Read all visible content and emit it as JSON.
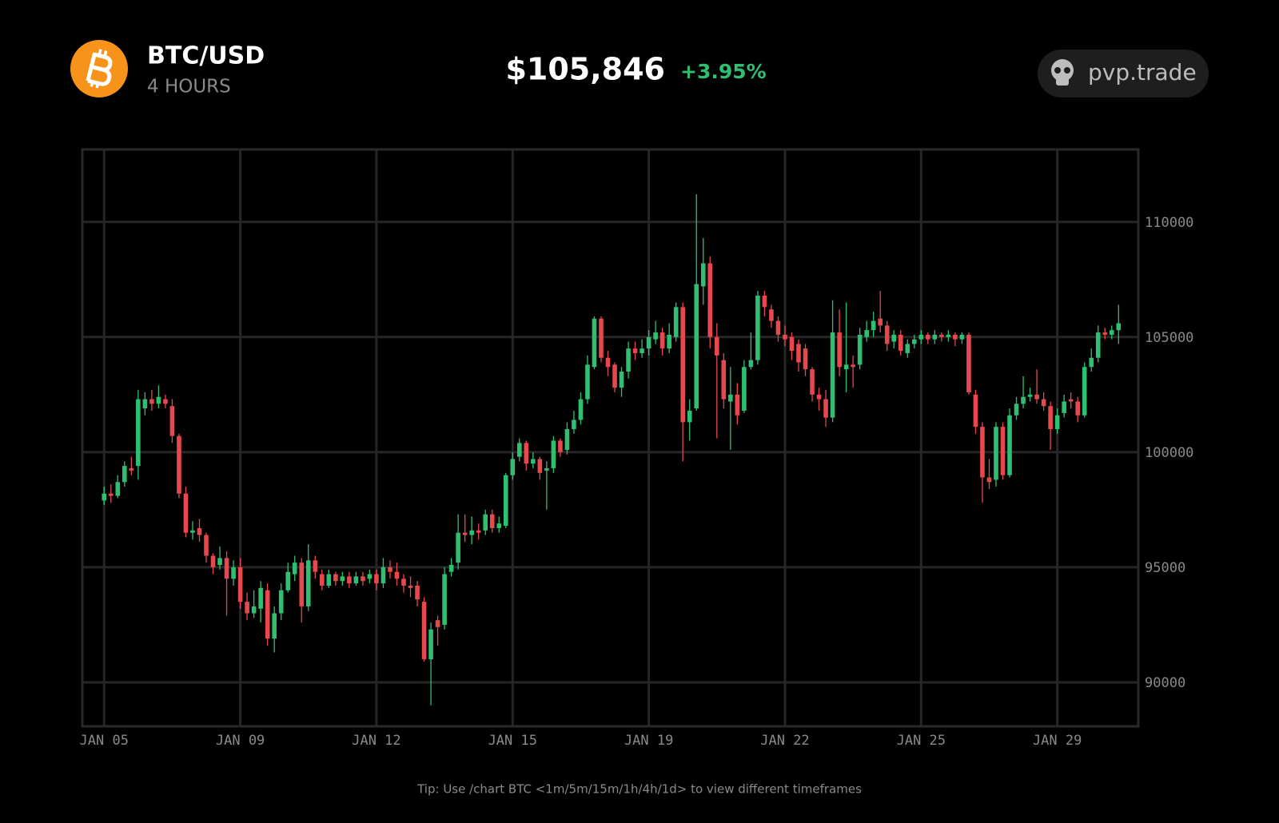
{
  "header": {
    "symbol": "BTC/USD",
    "interval": "4 HOURS",
    "price": "$105,846",
    "change": "+3.95%",
    "brand": "pvp.trade"
  },
  "footer": {
    "tip": "Tip: Use /chart BTC <1m/5m/15m/1h/4h/1d> to view different timeframes"
  },
  "chart_data": {
    "type": "candlestick",
    "categories": [
      "JAN 05",
      null,
      null,
      null,
      null,
      null,
      null,
      null,
      null,
      null,
      null,
      null,
      null,
      null,
      null,
      null,
      null,
      null,
      null,
      null,
      "JAN 09",
      null,
      null,
      null,
      null,
      null,
      null,
      null,
      null,
      null,
      null,
      null,
      null,
      null,
      null,
      null,
      null,
      null,
      null,
      null,
      "JAN 12",
      null,
      null,
      null,
      null,
      null,
      null,
      null,
      null,
      null,
      null,
      null,
      null,
      null,
      null,
      null,
      null,
      null,
      null,
      null,
      "JAN 15",
      null,
      null,
      null,
      null,
      null,
      null,
      null,
      null,
      null,
      null,
      null,
      null,
      null,
      null,
      null,
      null,
      null,
      null,
      null,
      "JAN 19",
      null,
      null,
      null,
      null,
      null,
      null,
      null,
      null,
      null,
      null,
      null,
      null,
      null,
      null,
      null,
      null,
      null,
      null,
      null,
      "JAN 22",
      null,
      null,
      null,
      null,
      null,
      null,
      null,
      null,
      null,
      null,
      null,
      null,
      null,
      null,
      null,
      null,
      null,
      null,
      null,
      "JAN 25",
      null,
      null,
      null,
      null,
      null,
      null,
      null,
      null,
      null,
      null,
      null,
      null,
      null,
      null,
      null,
      null,
      null,
      null,
      null,
      "JAN 29",
      null,
      null,
      null,
      null,
      null,
      null,
      null,
      null,
      null
    ],
    "open": [
      97900,
      98200,
      98100,
      98700,
      99300,
      99400,
      101900,
      102300,
      102100,
      102300,
      102000,
      100700,
      98200,
      96500,
      96700,
      96400,
      95500,
      95100,
      95400,
      94500,
      95000,
      93500,
      93000,
      93200,
      94000,
      91900,
      93000,
      94000,
      94700,
      95200,
      93300,
      95300,
      94700,
      94200,
      94700,
      94400,
      94600,
      94300,
      94600,
      94500,
      94700,
      94300,
      95000,
      94800,
      94500,
      94200,
      94200,
      93500,
      91000,
      92700,
      92500,
      94800,
      95200,
      96500,
      96400,
      96600,
      96600,
      97300,
      96700,
      96800,
      99000,
      99800,
      100400,
      99500,
      99700,
      99200,
      99300,
      100500,
      100100,
      101000,
      101400,
      102300,
      103700,
      105800,
      104100,
      103800,
      102800,
      103500,
      104500,
      104300,
      104500,
      104900,
      105200,
      104500,
      105000,
      106300,
      101300,
      101900,
      107200,
      108200,
      105000,
      104000,
      102200,
      102500,
      101800,
      103700,
      104000,
      106800,
      106200,
      105700,
      105100,
      105000,
      104700,
      104500,
      103600,
      102500,
      102300,
      101500,
      105200,
      103600,
      103800,
      103800,
      105000,
      105300,
      105800,
      105500,
      104800,
      105100,
      104300,
      104700,
      104900,
      105100,
      104900,
      105100,
      105000,
      105100,
      104900,
      105100,
      102500,
      101100,
      98900,
      98800,
      101100,
      99000,
      101600,
      102100,
      102400,
      102500,
      102300,
      102000,
      101000,
      101700,
      102300,
      102200,
      101600,
      103700,
      104100,
      105200,
      105100,
      105300
    ],
    "high": [
      98500,
      98600,
      99000,
      99600,
      99800,
      102700,
      102600,
      102700,
      102900,
      102500,
      102300,
      100800,
      98500,
      97000,
      97100,
      96500,
      95600,
      95900,
      95700,
      95300,
      95400,
      93900,
      94000,
      94400,
      94300,
      93300,
      94300,
      95200,
      95500,
      95400,
      96000,
      95500,
      94900,
      94900,
      94800,
      94800,
      94800,
      94800,
      94800,
      94900,
      94900,
      95400,
      95300,
      95200,
      94700,
      94600,
      94400,
      93700,
      92600,
      92900,
      95000,
      95400,
      97300,
      97300,
      97200,
      96900,
      97500,
      97500,
      97200,
      99100,
      100000,
      100600,
      100500,
      100000,
      99800,
      99600,
      100700,
      100600,
      101300,
      101800,
      102600,
      104200,
      105900,
      105900,
      104400,
      103900,
      103700,
      104800,
      104800,
      104900,
      105300,
      105700,
      105400,
      105600,
      106500,
      106500,
      102300,
      111200,
      109300,
      108500,
      105600,
      104300,
      103700,
      103000,
      104000,
      105200,
      107000,
      107000,
      106400,
      105900,
      105500,
      105200,
      104900,
      104700,
      103700,
      102800,
      102700,
      106600,
      106200,
      106500,
      104200,
      105400,
      105700,
      106100,
      107000,
      105700,
      105300,
      105300,
      104900,
      105100,
      105300,
      105200,
      105300,
      105200,
      105300,
      105200,
      105200,
      105200,
      102700,
      101300,
      99700,
      101300,
      101300,
      101900,
      102400,
      103300,
      102800,
      103600,
      102600,
      102200,
      101900,
      102500,
      102600,
      102400,
      103900,
      104500,
      105500,
      105400,
      105500,
      106400
    ],
    "low": [
      97700,
      97800,
      98000,
      98500,
      99000,
      98800,
      101600,
      101800,
      101900,
      101900,
      100400,
      98000,
      96300,
      96200,
      96100,
      95200,
      94700,
      94900,
      92900,
      94200,
      93200,
      92700,
      92800,
      92600,
      91600,
      91300,
      92700,
      93900,
      94400,
      92600,
      93100,
      94500,
      94000,
      94100,
      94200,
      94200,
      94100,
      94200,
      94200,
      94300,
      94000,
      94100,
      94500,
      94200,
      93900,
      93700,
      93300,
      90900,
      89000,
      91600,
      92300,
      94600,
      94900,
      96100,
      96000,
      96200,
      96400,
      96500,
      96500,
      96700,
      98800,
      99600,
      99200,
      99300,
      98800,
      97500,
      99100,
      99800,
      99900,
      100800,
      101200,
      102100,
      103600,
      103900,
      103300,
      102600,
      102400,
      103200,
      104000,
      104100,
      104200,
      104700,
      104200,
      104300,
      104800,
      99600,
      100500,
      101800,
      106400,
      104500,
      100600,
      101900,
      100100,
      101200,
      101700,
      103600,
      103800,
      105900,
      105400,
      104800,
      104600,
      104000,
      103500,
      103300,
      102200,
      101800,
      101100,
      101300,
      103300,
      102600,
      102800,
      103600,
      104800,
      105000,
      105200,
      104400,
      104500,
      104200,
      104100,
      104500,
      104700,
      104700,
      104700,
      104800,
      104800,
      104600,
      104700,
      102500,
      100800,
      97800,
      98400,
      98500,
      98800,
      98900,
      101400,
      101900,
      102200,
      102100,
      101800,
      100100,
      100800,
      101500,
      101900,
      101300,
      101500,
      103500,
      103900,
      104900,
      104900,
      104700
    ],
    "close": [
      98200,
      98100,
      98700,
      99400,
      99200,
      102300,
      102300,
      102100,
      102400,
      102100,
      100700,
      98200,
      96500,
      96600,
      96400,
      95500,
      95000,
      95400,
      94500,
      95000,
      93500,
      93000,
      93300,
      94100,
      91900,
      93000,
      94000,
      94800,
      95200,
      93300,
      95300,
      94800,
      94200,
      94700,
      94400,
      94600,
      94300,
      94600,
      94400,
      94700,
      94300,
      95000,
      94800,
      94500,
      94200,
      94100,
      93600,
      91000,
      92300,
      92400,
      94700,
      95100,
      96500,
      96400,
      96600,
      96500,
      97300,
      96700,
      96900,
      99000,
      99700,
      100400,
      99500,
      99700,
      99100,
      99300,
      100500,
      100000,
      101000,
      101400,
      102300,
      103800,
      105800,
      104100,
      103700,
      102800,
      103500,
      104500,
      104300,
      104500,
      105000,
      105200,
      104500,
      105100,
      106300,
      101300,
      101800,
      107300,
      108200,
      105000,
      104200,
      102300,
      102500,
      101600,
      103700,
      104000,
      106800,
      106300,
      105700,
      105100,
      104900,
      104400,
      103900,
      103600,
      102500,
      102300,
      101500,
      105200,
      103700,
      103800,
      103700,
      105100,
      105300,
      105700,
      105500,
      104700,
      105100,
      104400,
      104700,
      104900,
      105100,
      104900,
      105100,
      105000,
      105100,
      104900,
      105100,
      102600,
      101100,
      98900,
      98700,
      101100,
      99000,
      101600,
      102100,
      102400,
      102500,
      102300,
      102000,
      101000,
      101600,
      102200,
      102200,
      101600,
      103700,
      104100,
      105200,
      105100,
      105300,
      105600
    ],
    "up_color": "#2fbf71",
    "down_color": "#e5484d",
    "ylim": [
      88090,
      113150
    ],
    "yticks": [
      90000,
      95000,
      100000,
      105000,
      110000
    ],
    "grid": true
  }
}
